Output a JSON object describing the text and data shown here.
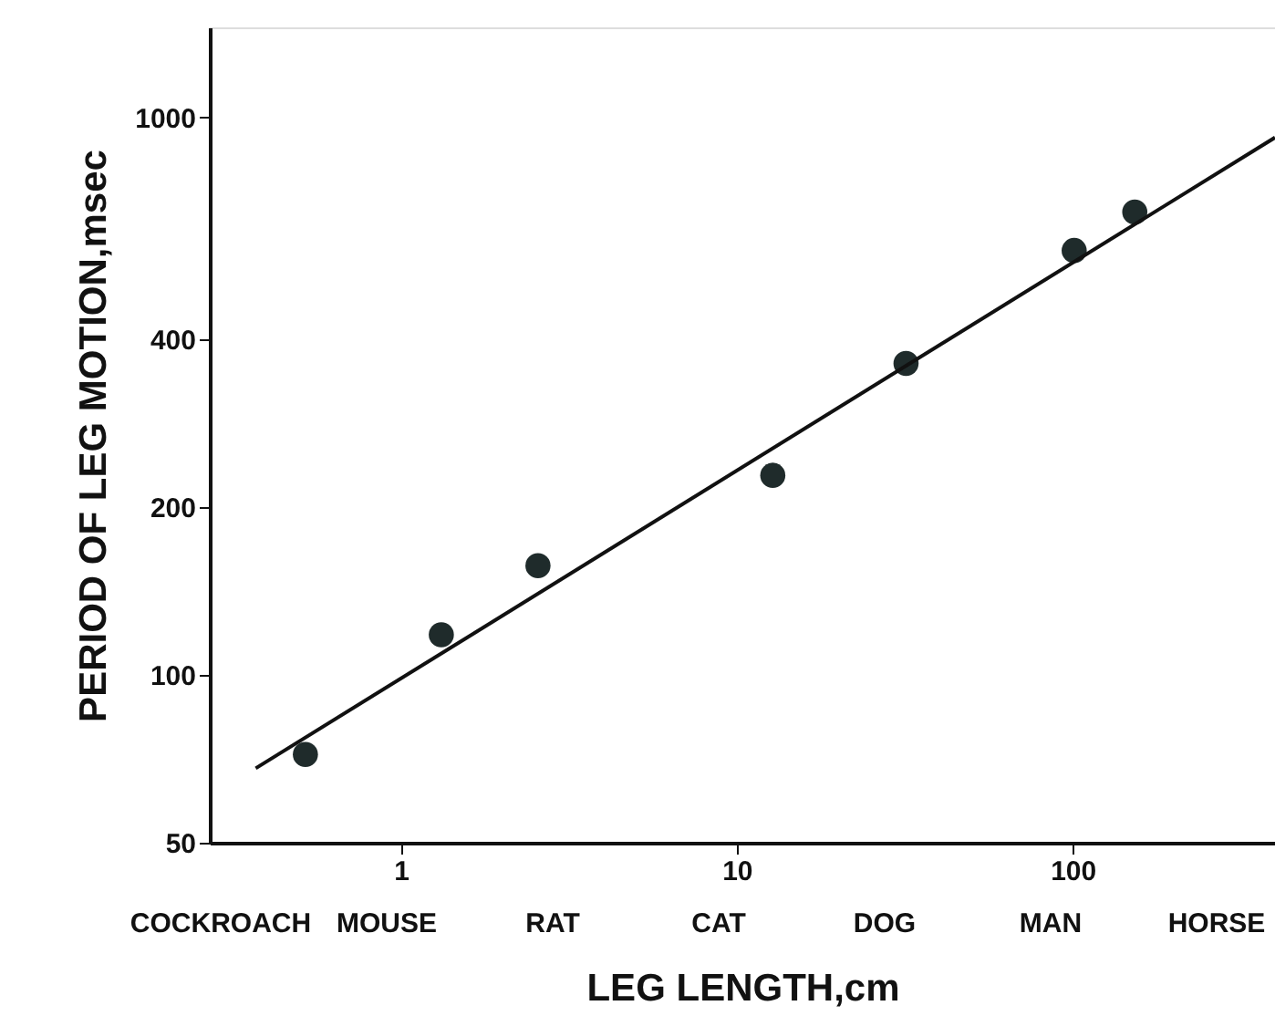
{
  "chart_data": {
    "type": "scatter",
    "xlabel": "LEG LENGTH,cm",
    "ylabel": "PERIOD OF LEG MOTION,msec",
    "log": "xy",
    "xlim": [
      0.27,
      400
    ],
    "ylim": [
      50,
      1450
    ],
    "xticks": [
      1,
      10,
      100
    ],
    "yticks": [
      50,
      100,
      200,
      400,
      1000
    ],
    "grid": false,
    "series": [
      {
        "color": "#1f2b2b",
        "marker": "circle",
        "x": [
          0.52,
          1.32,
          2.56,
          12.8,
          31.9,
          101,
          153
        ],
        "values": [
          72,
          118,
          157,
          228,
          362,
          577,
          676
        ]
      },
      {
        "type": "line",
        "marker": "none",
        "color": "#111111",
        "x": [
          0.37,
          400
        ],
        "values": [
          68,
          920
        ]
      }
    ],
    "annotations": [
      "COCKROACH",
      "MOUSE",
      "RAT",
      "CAT",
      "DOG",
      "MAN",
      "HORSE"
    ]
  }
}
